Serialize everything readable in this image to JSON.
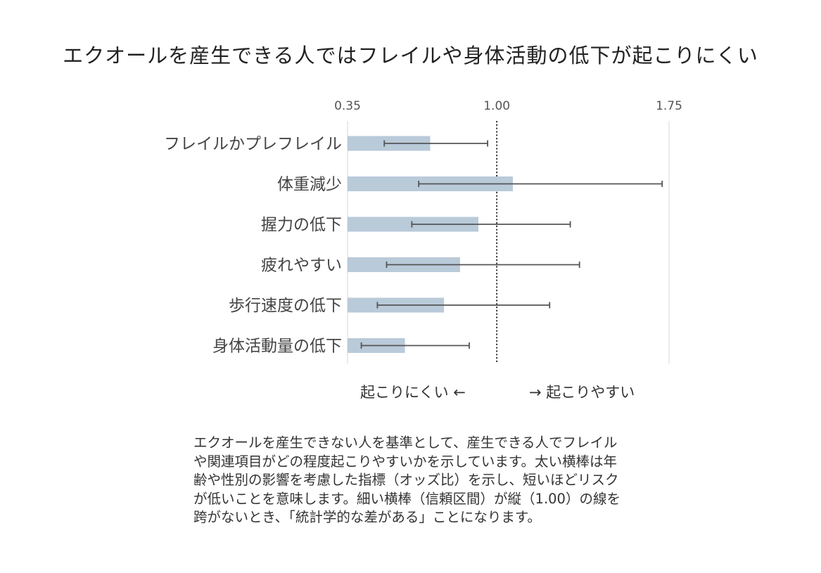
{
  "title": "エクオールを産生できる人ではフレイルや身体活動の低下が起こりにくい",
  "chart_data": {
    "type": "bar",
    "orientation": "horizontal",
    "subtype": "forest-plot",
    "title": "エクオールを産生できる人ではフレイルや身体活動の低下が起こりにくい",
    "xlabel": "",
    "ylabel": "",
    "xlim": [
      0.35,
      1.75
    ],
    "x_ticks": [
      "0.35",
      "1.00",
      "1.75"
    ],
    "tick_values": [
      0.35,
      1.0,
      1.75
    ],
    "reference_line": 1.0,
    "categories": [
      "フレイルかプレフレイル",
      "体重減少",
      "握力の低下",
      "疲れやすい",
      "歩行速度の低下",
      "身体活動量の低下"
    ],
    "values": [
      0.71,
      1.07,
      0.92,
      0.84,
      0.77,
      0.6
    ],
    "ci_lower": [
      0.51,
      0.66,
      0.63,
      0.52,
      0.48,
      0.41
    ],
    "ci_upper": [
      0.96,
      1.72,
      1.32,
      1.36,
      1.23,
      0.88
    ],
    "bar_color": "#b9cad9",
    "error_color": "#555555",
    "grid": false
  },
  "direction_labels": {
    "left": "起こりにくい ←",
    "right": "→ 起こりやすい"
  },
  "note_lines": [
    "エクオールを産生できない人を基準として、産生できる人でフレイル",
    "や関連項目がどの程度起こりやすいかを示しています。太い横棒は年",
    "齢や性別の影響を考慮した指標（オッズ比）を示し、短いほどリスク",
    "が低いことを意味します。細い横棒（信頼区間）が縦（1.00）の線を",
    "跨がないとき、「統計学的な差がある」ことになります。"
  ]
}
